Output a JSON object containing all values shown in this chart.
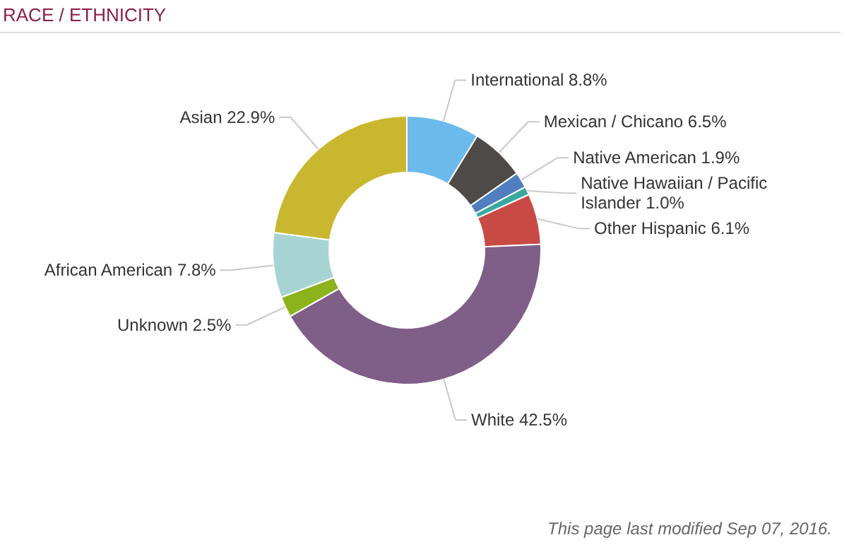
{
  "chart_data": {
    "type": "donut",
    "title": "RACE / ETHNICITY",
    "categories": [
      "International",
      "Mexican / Chicano",
      "Native American",
      "Native Hawaiian / Pacific Islander",
      "Other Hispanic",
      "White",
      "Unknown",
      "African American",
      "Asian"
    ],
    "values": [
      8.8,
      6.5,
      1.9,
      1.0,
      6.1,
      42.5,
      2.5,
      7.8,
      22.9
    ],
    "value_labels": [
      "8.8%",
      "6.5%",
      "1.9%",
      "1.0%",
      "6.1%",
      "42.5%",
      "2.5%",
      "7.8%",
      "22.9%"
    ],
    "colors": [
      "#6cbaec",
      "#4d4a47",
      "#4f7fc0",
      "#3aa8a0",
      "#c94a45",
      "#7f5e87",
      "#8cb21c",
      "#a6d4d3",
      "#c9b82f"
    ],
    "annotations": [
      "This page last modified Sep 07, 2016."
    ]
  }
}
